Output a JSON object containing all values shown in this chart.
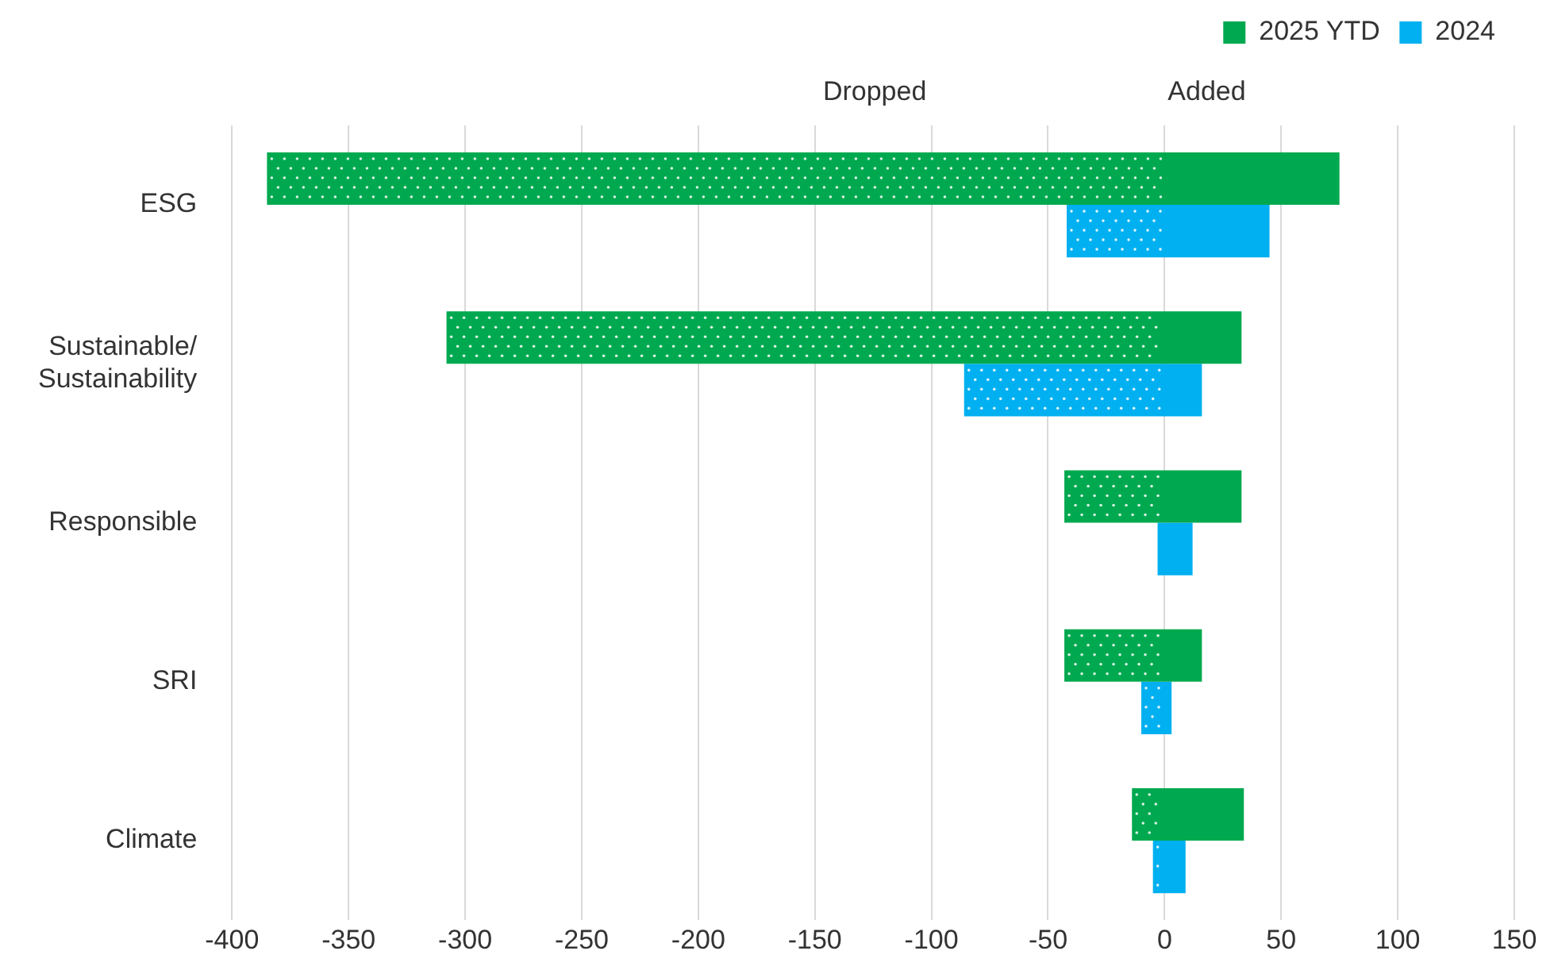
{
  "chart_data": {
    "type": "bar",
    "orientation": "horizontal",
    "categories": [
      "ESG",
      "Sustainable/\nSustainability",
      "Responsible",
      "SRI",
      "Climate"
    ],
    "series": [
      {
        "name": "2025 YTD",
        "color": "#00a94f",
        "base": [
          -385,
          -308,
          -43,
          -43,
          -14
        ],
        "values": [
          460,
          341,
          76,
          59,
          48
        ]
      },
      {
        "name": "2024",
        "color": "#00b0f0",
        "base": [
          -42,
          -86,
          -3,
          -10,
          -5
        ],
        "values": [
          87,
          102,
          15,
          13,
          14
        ]
      }
    ],
    "xlim": [
      -400,
      150
    ],
    "xticks": [
      -400,
      -350,
      -300,
      -250,
      -200,
      -150,
      -100,
      -50,
      0,
      50,
      100,
      150
    ],
    "annotations": [
      "Dropped",
      "Added"
    ],
    "grid": "x",
    "legend": "top right"
  }
}
